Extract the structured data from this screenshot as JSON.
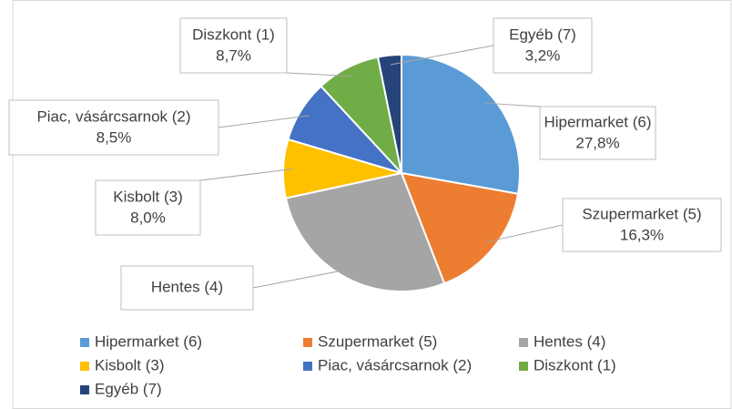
{
  "chart_data": {
    "type": "pie",
    "categories": [
      "Hipermarket (6)",
      "Szupermarket (5)",
      "Hentes (4)",
      "Kisbolt (3)",
      "Piac, vásárcsarnok (2)",
      "Diszkont (1)",
      "Egyéb (7)"
    ],
    "values": [
      27.8,
      16.3,
      27.5,
      8.0,
      8.5,
      8.7,
      3.2
    ],
    "value_labels": [
      "27,8%",
      "16,3%",
      null,
      "8,0%",
      "8,5%",
      "8,7%",
      "3,2%"
    ],
    "colors": [
      "#5b9bd5",
      "#ed7d31",
      "#a5a5a5",
      "#ffc000",
      "#4472c4",
      "#70ad47",
      "#264478"
    ],
    "legend": "bottom"
  }
}
